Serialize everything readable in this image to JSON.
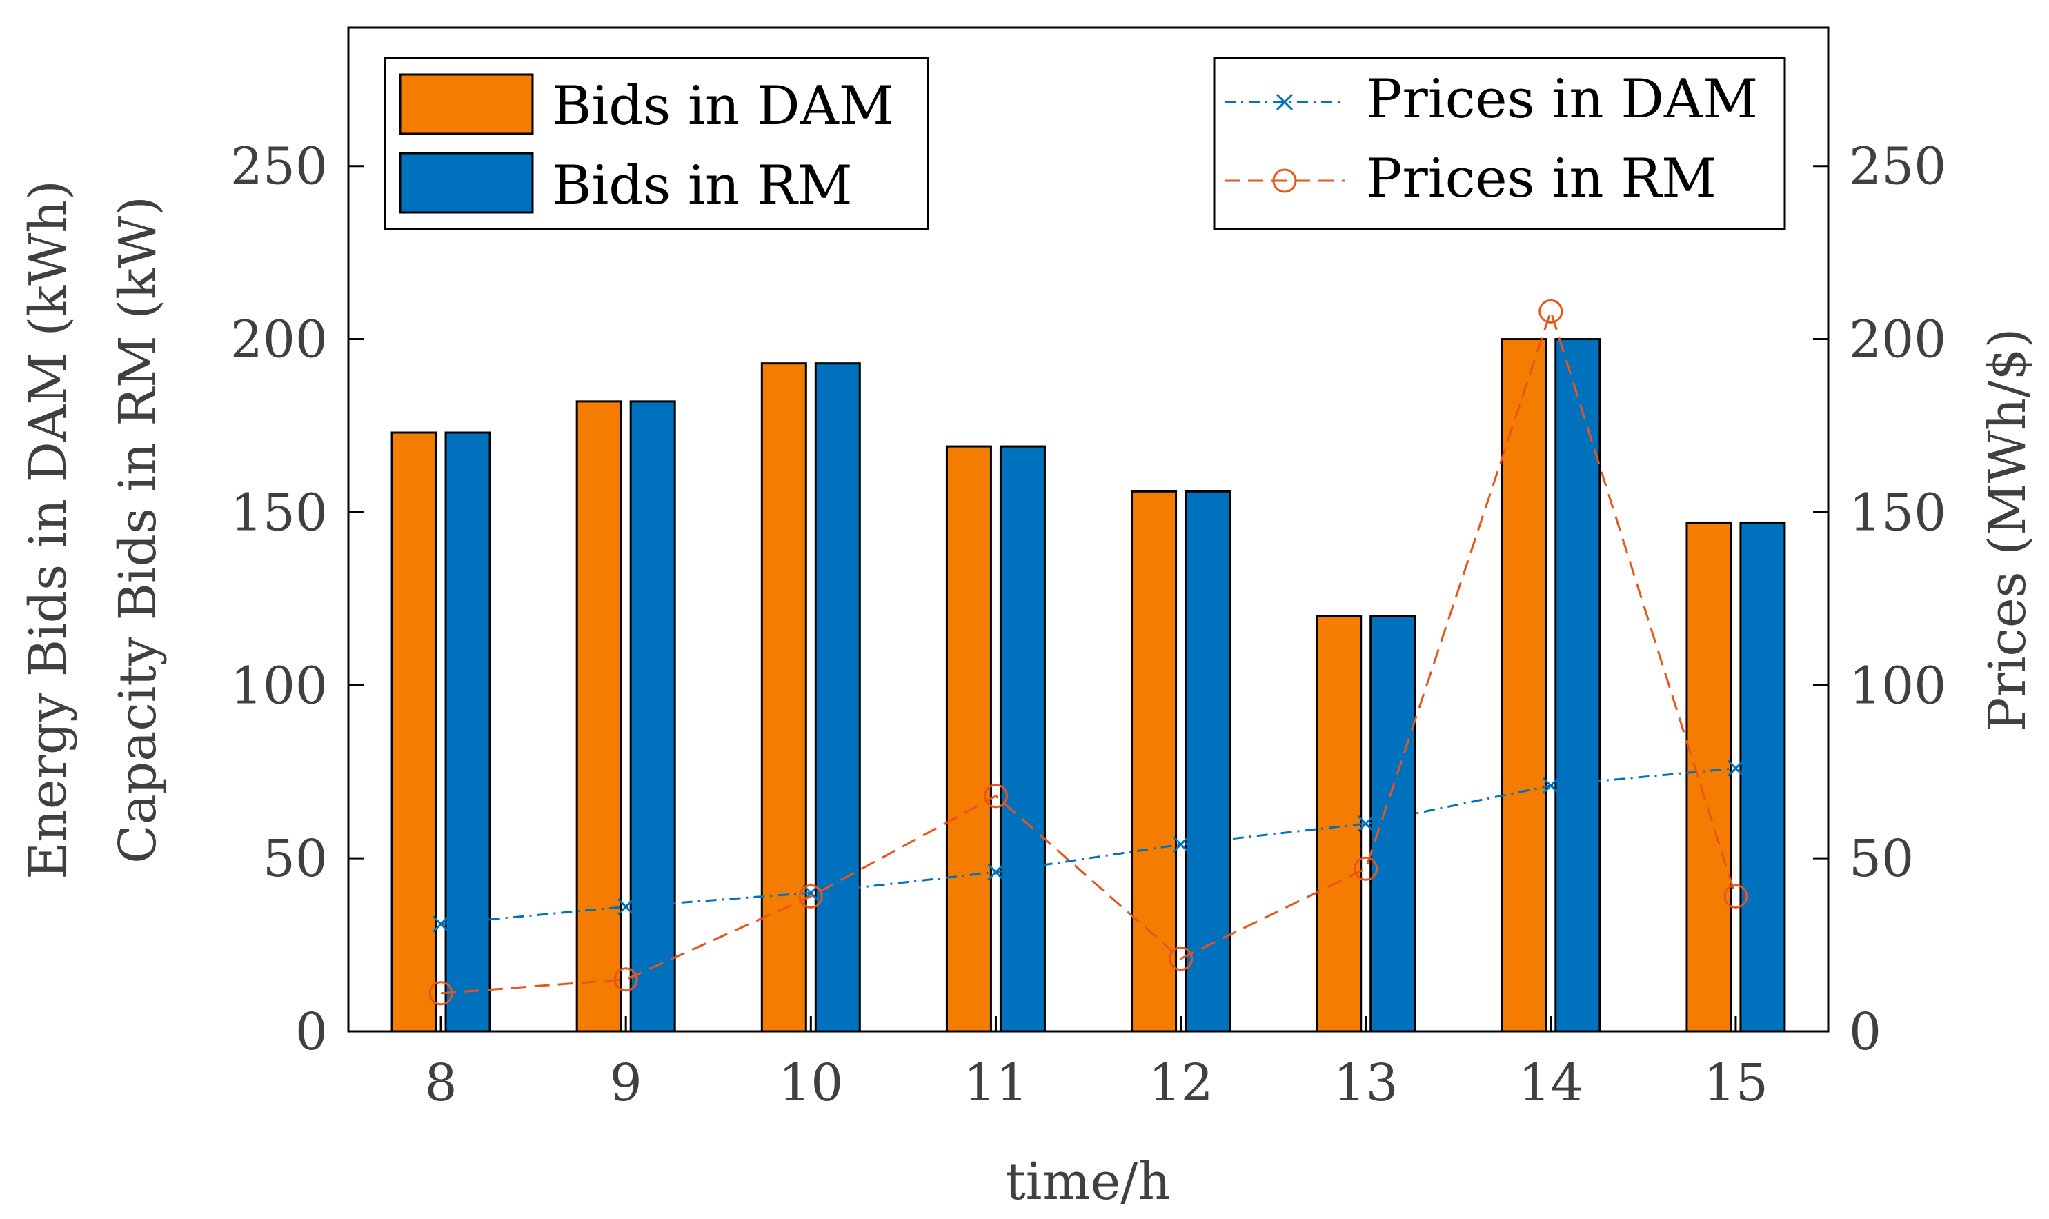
{
  "chart_data": {
    "type": "bar",
    "x": [
      8,
      9,
      10,
      11,
      12,
      13,
      14,
      15
    ],
    "xlabel": "time/h",
    "ylabel_left_line1": "Energy Bids in DAM (kWh)",
    "ylabel_left_line2": "Capacity Bids in RM (kW)",
    "ylabel_right": "Prices (MWh/$)",
    "ylim": [
      0,
      290
    ],
    "yticks": [
      0,
      50,
      100,
      150,
      200,
      250
    ],
    "ylim_right": [
      0,
      290
    ],
    "yticks_right": [
      0,
      50,
      100,
      150,
      200,
      250
    ],
    "bars": [
      {
        "name": "Bids in DAM",
        "color": "#F47C00",
        "values": [
          173,
          182,
          193,
          169,
          156,
          120,
          200,
          147
        ]
      },
      {
        "name": "Bids in RM",
        "color": "#0072BD",
        "values": [
          173,
          182,
          193,
          169,
          156,
          120,
          200,
          147
        ]
      }
    ],
    "lines": [
      {
        "name": "Prices in DAM",
        "color": "#0072BD",
        "marker": "x",
        "style": "dash-dot",
        "axis": "right",
        "values": [
          31,
          36,
          40,
          46,
          54,
          60,
          71,
          76
        ]
      },
      {
        "name": "Prices in RM",
        "color": "#E8541A",
        "marker": "o",
        "style": "dashed",
        "axis": "right",
        "values": [
          11,
          15,
          39,
          68,
          21,
          47,
          208,
          39
        ]
      }
    ],
    "legend_bars_location": "top-left",
    "legend_lines_location": "top-right"
  }
}
